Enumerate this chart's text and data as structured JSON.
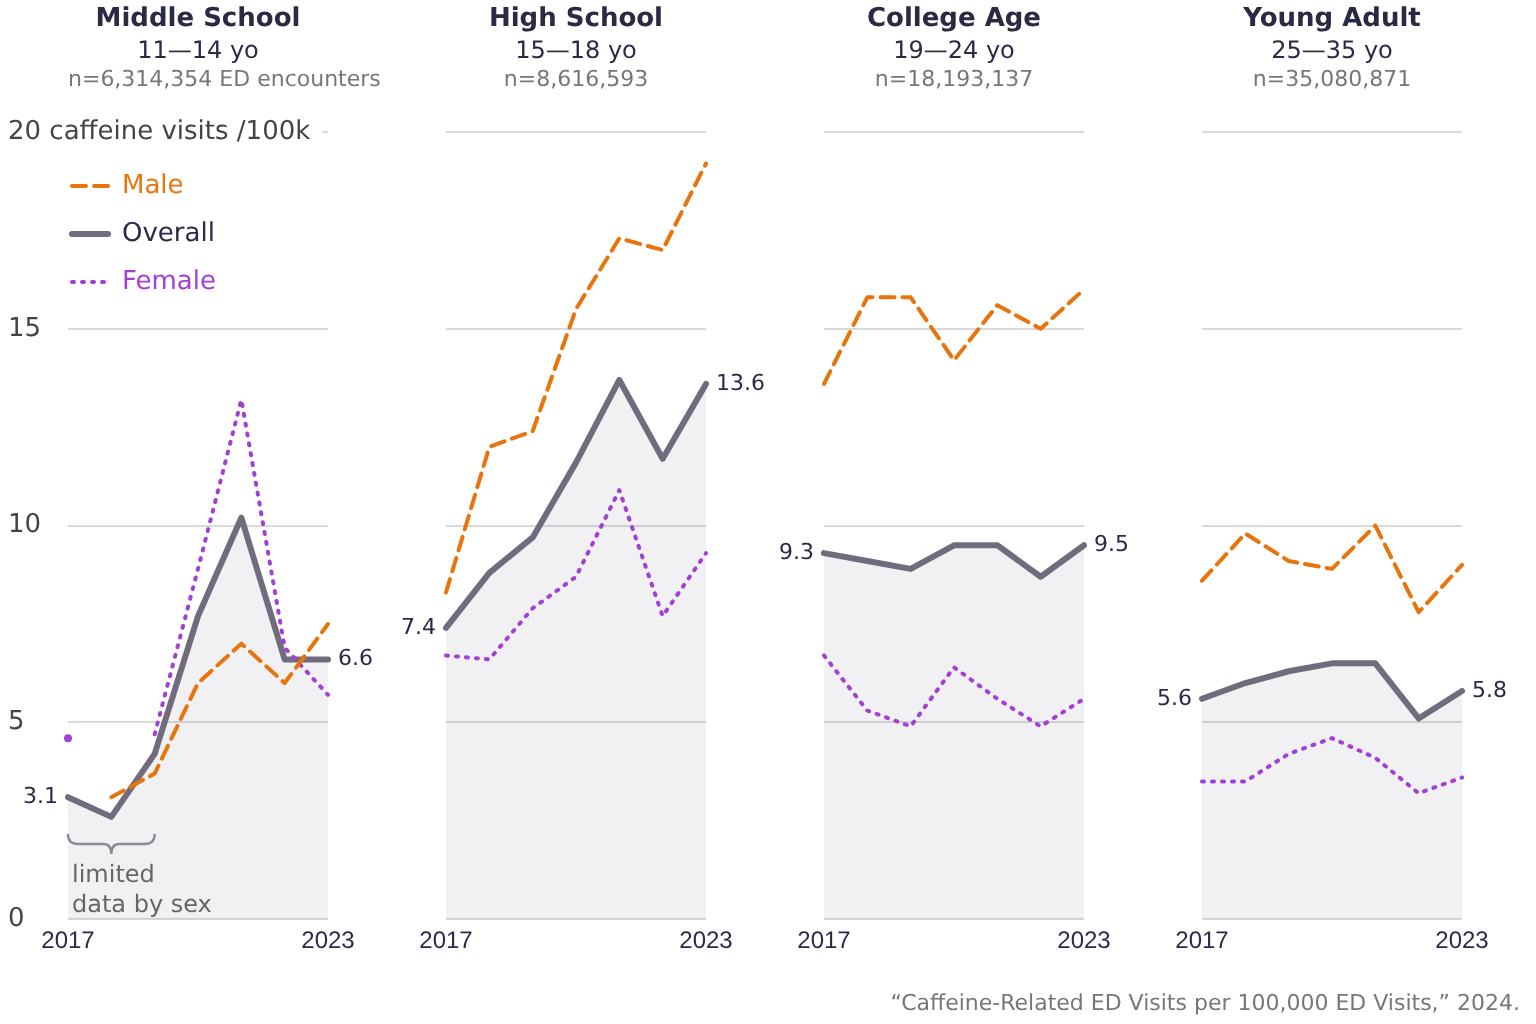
{
  "chart_data": [
    {
      "type": "line",
      "title": "Middle School",
      "subtitle": "11—14 yo\nn=6,314,354 ED encounters",
      "categories": [
        "2017",
        null,
        null,
        null,
        null,
        null,
        "2023"
      ],
      "ylim": [
        0,
        20
      ],
      "yticks": [
        0,
        5,
        10,
        15,
        {
          "value": 20,
          "label": "20 caffeine visits /100k"
        }
      ],
      "grid": "y",
      "legend": "top left",
      "marker": "none",
      "annotations": [
        "limited data by sex"
      ],
      "series": [
        {
          "name": "Male",
          "color": "#e8740c",
          "line_style": "dashed",
          "values": [
            null,
            3.1,
            3.7,
            6.0,
            7.0,
            6.0,
            7.5
          ]
        },
        {
          "name": "Overall",
          "color": "#716c7d",
          "type": "area",
          "line_style": "solid",
          "values": [
            3.1,
            2.6,
            4.2,
            7.7,
            10.2,
            6.6,
            6.6
          ],
          "value_labels": [
            "3.1",
            null,
            null,
            null,
            null,
            null,
            "6.6"
          ]
        },
        {
          "name": "Female",
          "color": "#a43fd4",
          "line_style": "dotted",
          "values": [
            4.6,
            null,
            4.7,
            8.9,
            13.2,
            6.9,
            5.7
          ]
        }
      ]
    },
    {
      "type": "line",
      "title": "High School",
      "subtitle": "15—18 yo\nn=8,616,593",
      "categories": [
        "2017",
        null,
        null,
        null,
        null,
        null,
        "2023"
      ],
      "ylim": [
        0,
        20
      ],
      "yticks": [
        0,
        5,
        10,
        15,
        20
      ],
      "grid": "y",
      "tick_labels": "x",
      "marker": "none",
      "series": [
        {
          "color": "#e8740c",
          "line_style": "dashed",
          "values": [
            8.3,
            12.0,
            12.4,
            15.5,
            17.3,
            17.0,
            19.2
          ]
        },
        {
          "color": "#716c7d",
          "type": "area",
          "line_style": "solid",
          "values": [
            7.4,
            8.8,
            9.7,
            11.6,
            13.7,
            11.7,
            13.6
          ],
          "value_labels": [
            "7.4",
            null,
            null,
            null,
            null,
            null,
            "13.6"
          ]
        },
        {
          "color": "#a43fd4",
          "line_style": "dotted",
          "values": [
            6.7,
            6.6,
            7.9,
            8.7,
            10.9,
            7.7,
            9.3
          ]
        }
      ]
    },
    {
      "type": "line",
      "title": "College Age",
      "subtitle": "19—24 yo\nn=18,193,137",
      "categories": [
        "2017",
        null,
        null,
        null,
        null,
        null,
        "2023"
      ],
      "ylim": [
        0,
        20
      ],
      "yticks": [
        0,
        5,
        10,
        15,
        20
      ],
      "grid": "y",
      "tick_labels": "x",
      "marker": "none",
      "series": [
        {
          "color": "#e8740c",
          "line_style": "dashed",
          "values": [
            13.6,
            15.8,
            15.8,
            14.2,
            15.6,
            15.0,
            16.0
          ]
        },
        {
          "color": "#716c7d",
          "type": "area",
          "line_style": "solid",
          "values": [
            9.3,
            9.1,
            8.9,
            9.5,
            9.5,
            8.7,
            9.5
          ],
          "value_labels": [
            "9.3",
            null,
            null,
            null,
            null,
            null,
            "9.5"
          ]
        },
        {
          "color": "#a43fd4",
          "line_style": "dotted",
          "values": [
            6.7,
            5.3,
            4.9,
            6.4,
            5.6,
            4.9,
            5.6
          ]
        }
      ]
    },
    {
      "type": "line",
      "title": "Young Adult",
      "subtitle": "25—35 yo\nn=35,080,871",
      "categories": [
        "2017",
        null,
        null,
        null,
        null,
        null,
        "2023"
      ],
      "ylim": [
        0,
        20
      ],
      "yticks": [
        0,
        5,
        10,
        15,
        20
      ],
      "grid": "y",
      "tick_labels": "x",
      "marker": "none",
      "annotations": [
        "“Caffeine-Related ED Visits per 100,000 ED Visits,” 2024."
      ],
      "series": [
        {
          "color": "#e8740c",
          "line_style": "dashed",
          "values": [
            8.6,
            9.8,
            9.1,
            8.9,
            10.0,
            7.8,
            9.0
          ]
        },
        {
          "color": "#716c7d",
          "type": "area",
          "line_style": "solid",
          "values": [
            5.6,
            6.0,
            6.3,
            6.5,
            6.5,
            5.1,
            5.8
          ],
          "value_labels": [
            "5.6",
            null,
            null,
            null,
            null,
            null,
            "5.8"
          ]
        },
        {
          "color": "#a43fd4",
          "line_style": "dotted",
          "values": [
            3.5,
            3.5,
            4.2,
            4.6,
            4.1,
            3.2,
            3.6
          ]
        }
      ]
    }
  ]
}
